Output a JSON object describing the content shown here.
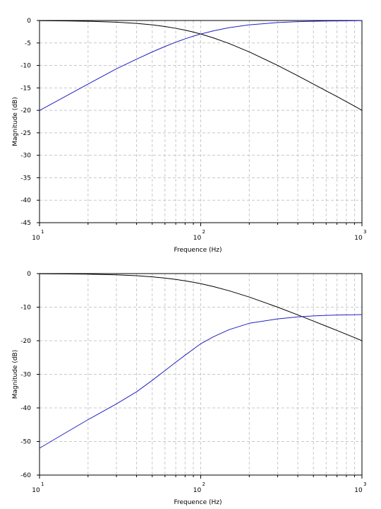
{
  "chart_data": [
    {
      "type": "line",
      "xlabel": "Frequence (Hz)",
      "ylabel": "Magnitude (dB)",
      "x_scale": "log",
      "xlim": [
        10,
        1000
      ],
      "ylim": [
        -45,
        0
      ],
      "y_ticks": [
        0,
        -5,
        -10,
        -15,
        -20,
        -25,
        -30,
        -35,
        -40,
        -45
      ],
      "x_ticks": [
        {
          "base": "10",
          "exp": "1"
        },
        {
          "base": "10",
          "exp": "2"
        },
        {
          "base": "10",
          "exp": "3"
        }
      ],
      "grid": true,
      "x": [
        10,
        15,
        20,
        30,
        40,
        50,
        60,
        70,
        80,
        90,
        100,
        120,
        150,
        200,
        300,
        400,
        500,
        600,
        700,
        800,
        900,
        1000
      ],
      "series": [
        {
          "color": "#000000",
          "values": [
            -0.04,
            -0.1,
            -0.17,
            -0.37,
            -0.64,
            -0.97,
            -1.34,
            -1.74,
            -2.15,
            -2.58,
            -3.01,
            -3.87,
            -5.12,
            -6.99,
            -10.0,
            -12.3,
            -14.15,
            -15.66,
            -16.93,
            -18.06,
            -19.07,
            -20.0
          ]
        },
        {
          "color": "#2020c0",
          "values": [
            -20.04,
            -16.58,
            -14.15,
            -10.75,
            -8.6,
            -7.0,
            -5.78,
            -4.83,
            -4.08,
            -3.48,
            -3.01,
            -2.3,
            -1.6,
            -0.97,
            -0.46,
            -0.26,
            -0.17,
            -0.12,
            -0.09,
            -0.07,
            -0.05,
            -0.04
          ]
        }
      ]
    },
    {
      "type": "line",
      "xlabel": "Frequence (Hz)",
      "ylabel": "Magnitude (dB)",
      "x_scale": "log",
      "xlim": [
        10,
        1000
      ],
      "ylim": [
        -60,
        0
      ],
      "y_ticks": [
        0,
        -10,
        -20,
        -30,
        -40,
        -50,
        -60
      ],
      "x_ticks": [
        {
          "base": "10",
          "exp": "1"
        },
        {
          "base": "10",
          "exp": "2"
        },
        {
          "base": "10",
          "exp": "3"
        }
      ],
      "grid": true,
      "x": [
        10,
        15,
        20,
        30,
        40,
        50,
        60,
        70,
        80,
        90,
        100,
        120,
        150,
        200,
        300,
        400,
        500,
        600,
        700,
        800,
        900,
        1000
      ],
      "series": [
        {
          "color": "#000000",
          "values": [
            -0.04,
            -0.1,
            -0.17,
            -0.37,
            -0.64,
            -0.97,
            -1.34,
            -1.74,
            -2.15,
            -2.58,
            -3.01,
            -3.87,
            -5.12,
            -6.99,
            -10.0,
            -12.3,
            -14.15,
            -15.66,
            -16.93,
            -18.06,
            -19.07,
            -20.0
          ]
        },
        {
          "color": "#2020c0",
          "values": [
            -52.0,
            -47.0,
            -43.5,
            -38.8,
            -35.2,
            -31.8,
            -28.9,
            -26.4,
            -24.3,
            -22.5,
            -20.9,
            -18.8,
            -16.7,
            -14.8,
            -13.5,
            -12.9,
            -12.6,
            -12.45,
            -12.35,
            -12.3,
            -12.25,
            -12.2
          ]
        }
      ]
    }
  ]
}
